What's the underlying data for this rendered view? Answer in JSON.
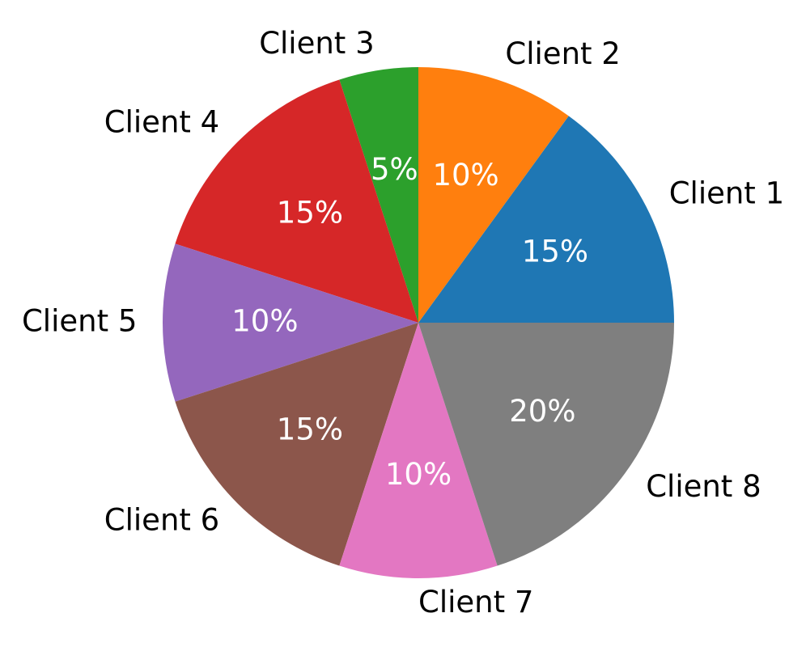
{
  "chart_data": {
    "type": "pie",
    "categories": [
      "Client 1",
      "Client 2",
      "Client 3",
      "Client 4",
      "Client 5",
      "Client 6",
      "Client 7",
      "Client 8"
    ],
    "values": [
      15,
      10,
      5,
      15,
      10,
      15,
      10,
      20
    ],
    "value_labels": [
      "15%",
      "10%",
      "5%",
      "15%",
      "10%",
      "15%",
      "10%",
      "20%"
    ],
    "colors": [
      "#1f77b4",
      "#ff7f0e",
      "#2ca02c",
      "#d62728",
      "#9467bd",
      "#8c564b",
      "#e377c2",
      "#7f7f7f"
    ]
  }
}
